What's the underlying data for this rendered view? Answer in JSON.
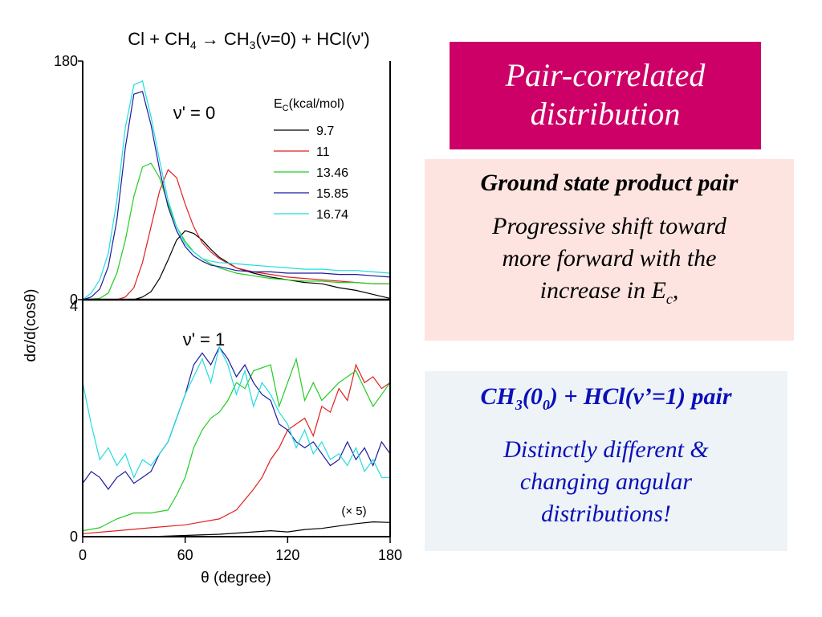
{
  "chart_data": {
    "type": "line",
    "title": "Cl + CH₄ → CH₃(ν=0) + HCl(ν')",
    "xlabel": "θ (degree)",
    "ylabel": "dσ/d(cosθ)",
    "xlim": [
      0,
      180
    ],
    "x_ticks": [
      "0",
      "60",
      "120",
      "180"
    ],
    "legend_title": "E_C(kcal/mol)",
    "legend_placement": "top-right",
    "panels": [
      {
        "label": "ν' = 0",
        "ylim": [
          0,
          180
        ],
        "y_ticks": [
          "180",
          "0"
        ],
        "series": [
          {
            "name": "9.7",
            "color": "#000000",
            "x": [
              0,
              10,
              20,
              25,
              30,
              35,
              40,
              45,
              50,
              55,
              60,
              65,
              70,
              75,
              80,
              90,
              100,
              110,
              120,
              130,
              140,
              150,
              160,
              170,
              180
            ],
            "y": [
              0,
              0,
              0,
              0,
              0,
              2,
              6,
              16,
              30,
              45,
              52,
              50,
              45,
              38,
              32,
              24,
              20,
              17,
              15,
              13,
              12,
              9,
              7,
              4,
              1
            ]
          },
          {
            "name": "11",
            "color": "#e02020",
            "x": [
              0,
              10,
              20,
              25,
              30,
              35,
              40,
              45,
              50,
              55,
              60,
              65,
              70,
              75,
              80,
              90,
              100,
              110,
              120,
              130,
              140,
              150,
              160,
              170,
              180
            ],
            "y": [
              0,
              0,
              0,
              2,
              9,
              28,
              55,
              82,
              98,
              92,
              72,
              55,
              43,
              36,
              31,
              24,
              21,
              19,
              17,
              16,
              15,
              14,
              13,
              12,
              12
            ]
          },
          {
            "name": "13.46",
            "color": "#22cc22",
            "x": [
              0,
              10,
              15,
              20,
              25,
              30,
              35,
              40,
              45,
              50,
              55,
              60,
              65,
              70,
              75,
              80,
              90,
              100,
              110,
              120,
              130,
              140,
              150,
              160,
              170,
              180
            ],
            "y": [
              0,
              1,
              5,
              20,
              45,
              78,
              100,
              103,
              92,
              72,
              55,
              44,
              36,
              31,
              27,
              24,
              20,
              18,
              16,
              15,
              14,
              14,
              13,
              13,
              12,
              12
            ]
          },
          {
            "name": "15.85",
            "color": "#1a1aa0",
            "x": [
              0,
              5,
              10,
              15,
              20,
              25,
              30,
              35,
              40,
              45,
              50,
              55,
              60,
              65,
              70,
              75,
              80,
              90,
              100,
              110,
              120,
              130,
              140,
              150,
              160,
              170,
              180
            ],
            "y": [
              0,
              2,
              8,
              25,
              60,
              115,
              155,
              157,
              132,
              98,
              70,
              52,
              40,
              33,
              29,
              26,
              25,
              22,
              21,
              21,
              20,
              20,
              20,
              19,
              19,
              18,
              17
            ]
          },
          {
            "name": "16.74",
            "color": "#20dddd",
            "x": [
              0,
              5,
              10,
              15,
              20,
              25,
              30,
              35,
              40,
              45,
              50,
              55,
              60,
              65,
              70,
              75,
              80,
              90,
              100,
              110,
              120,
              130,
              140,
              150,
              160,
              170,
              180
            ],
            "y": [
              0,
              5,
              15,
              35,
              75,
              130,
              162,
              165,
              138,
              105,
              75,
              55,
              42,
              36,
              31,
              29,
              28,
              27,
              26,
              25,
              24,
              23,
              23,
              22,
              22,
              21,
              20
            ]
          }
        ]
      },
      {
        "label": "ν' = 1",
        "ylim": [
          0,
          4
        ],
        "y_ticks": [
          "4",
          "0"
        ],
        "annotation": "(× 5)",
        "series": [
          {
            "name": "9.7",
            "color": "#000000",
            "x": [
              0,
              20,
              40,
              60,
              80,
              100,
              110,
              120,
              130,
              140,
              150,
              160,
              170,
              180
            ],
            "y": [
              0,
              0,
              0,
              0.02,
              0.04,
              0.08,
              0.1,
              0.08,
              0.12,
              0.14,
              0.18,
              0.22,
              0.25,
              0.24
            ]
          },
          {
            "name": "11",
            "color": "#e02020",
            "x": [
              0,
              20,
              40,
              60,
              80,
              90,
              100,
              105,
              110,
              115,
              120,
              125,
              130,
              135,
              140,
              145,
              150,
              155,
              160,
              165,
              170,
              175,
              180
            ],
            "y": [
              0.05,
              0.1,
              0.15,
              0.2,
              0.3,
              0.45,
              0.8,
              1.0,
              1.3,
              1.5,
              1.8,
              1.9,
              2.0,
              1.7,
              2.2,
              2.1,
              2.5,
              2.3,
              2.9,
              2.6,
              2.7,
              2.5,
              2.6
            ]
          },
          {
            "name": "13.46",
            "color": "#22cc22",
            "x": [
              0,
              10,
              20,
              30,
              40,
              50,
              55,
              60,
              65,
              70,
              75,
              80,
              85,
              90,
              95,
              100,
              110,
              115,
              120,
              125,
              130,
              135,
              140,
              150,
              160,
              170,
              180
            ],
            "y": [
              0.1,
              0.15,
              0.3,
              0.4,
              0.4,
              0.45,
              0.7,
              1.0,
              1.5,
              1.8,
              2.0,
              2.1,
              2.3,
              2.6,
              2.5,
              2.8,
              2.9,
              2.2,
              2.6,
              3.0,
              2.3,
              2.6,
              2.3,
              2.6,
              2.8,
              2.2,
              2.6
            ]
          },
          {
            "name": "15.85",
            "color": "#1a1aa0",
            "x": [
              0,
              5,
              10,
              15,
              20,
              25,
              30,
              35,
              40,
              45,
              50,
              55,
              60,
              65,
              70,
              75,
              80,
              85,
              90,
              95,
              100,
              105,
              110,
              115,
              120,
              125,
              130,
              135,
              140,
              145,
              150,
              155,
              160,
              165,
              170,
              175,
              180
            ],
            "y": [
              0.9,
              1.1,
              1.0,
              0.8,
              1.0,
              1.1,
              0.9,
              1.0,
              1.1,
              1.4,
              1.6,
              2.0,
              2.4,
              2.9,
              3.1,
              2.9,
              3.2,
              3.0,
              2.7,
              2.9,
              2.6,
              2.4,
              2.3,
              1.9,
              1.8,
              1.6,
              1.5,
              1.6,
              1.4,
              1.2,
              1.3,
              1.6,
              1.3,
              1.5,
              1.2,
              1.6,
              1.4
            ]
          },
          {
            "name": "16.74",
            "color": "#20dddd",
            "x": [
              0,
              5,
              10,
              15,
              20,
              25,
              30,
              35,
              40,
              45,
              50,
              55,
              60,
              65,
              70,
              75,
              80,
              85,
              90,
              95,
              100,
              105,
              110,
              115,
              120,
              125,
              130,
              135,
              140,
              145,
              150,
              155,
              160,
              165,
              170,
              175,
              180
            ],
            "y": [
              2.6,
              1.9,
              1.3,
              1.5,
              1.2,
              1.4,
              1.0,
              1.3,
              1.2,
              1.4,
              1.6,
              2.0,
              2.4,
              2.7,
              3.0,
              2.6,
              3.2,
              2.9,
              2.4,
              2.8,
              2.2,
              2.6,
              2.4,
              2.1,
              1.9,
              1.5,
              1.8,
              1.4,
              1.6,
              1.3,
              1.4,
              1.2,
              1.5,
              1.1,
              1.3,
              1.0,
              1.0
            ]
          }
        ]
      }
    ]
  },
  "boxes": {
    "title_line1": "Pair-correlated",
    "title_line2": "distribution",
    "ground_heading": "Ground state product pair",
    "ground_body_1": "Progressive shift toward",
    "ground_body_2": "more forward with the",
    "ground_body_3": "increase in E",
    "ground_body_sub": "c",
    "ground_body_end": ",",
    "ch3_heading_a": "CH",
    "ch3_heading_sub1": "3",
    "ch3_heading_b": "(0",
    "ch3_heading_sub2": "0",
    "ch3_heading_c": ") + HCl(v’=1) pair",
    "ch3_body_1": "Distinctly different &",
    "ch3_body_2": "changing angular",
    "ch3_body_3": "distributions!"
  }
}
